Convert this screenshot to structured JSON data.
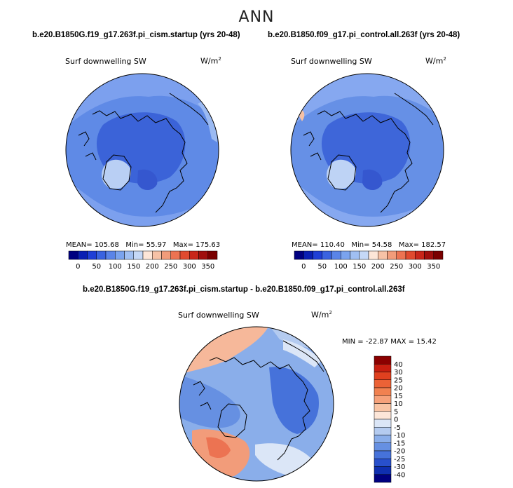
{
  "season": "ANN",
  "panels": [
    {
      "title": "b.e20.B1850G.f19_g17.263f.pi_cism.startup (yrs 20-48)",
      "label": "Surf downwelling SW",
      "units_base": "W/m",
      "units_exp": "2",
      "mean_label": "MEAN=",
      "mean": "105.68",
      "min_label": "Min=",
      "min": "55.97",
      "max_label": "Max=",
      "max": "175.63"
    },
    {
      "title": "b.e20.B1850.f09_g17.pi_control.all.263f (yrs 20-48)",
      "label": "Surf downwelling SW",
      "units_base": "W/m",
      "units_exp": "2",
      "mean_label": "MEAN=",
      "mean": "110.40",
      "min_label": "Min=",
      "min": "54.58",
      "max_label": "Max=",
      "max": "182.57"
    }
  ],
  "diff": {
    "title": "b.e20.B1850G.f19_g17.263f.pi_cism.startup - b.e20.B1850.f09_g17.pi_control.all.263f",
    "label": "Surf downwelling SW",
    "units_base": "W/m",
    "units_exp": "2",
    "stats_text": "MIN = -22.87 MAX =  15.42"
  },
  "chart_data": [
    {
      "type": "heatmap",
      "projection": "north-polar-stereographic",
      "title": "b.e20.B1850G.f19_g17.263f.pi_cism.startup (yrs 20-48)",
      "variable": "Surf downwelling SW",
      "units": "W/m2",
      "mean": 105.68,
      "min": 55.97,
      "max": 175.63,
      "colorbar_levels": [
        0,
        50,
        100,
        150,
        200,
        250,
        300,
        350
      ],
      "colorbar_colors": [
        "#000080",
        "#0a1fb3",
        "#1f3fd6",
        "#3a63e0",
        "#5a84e8",
        "#7aa3ee",
        "#a0bff2",
        "#c5d8f6",
        "#fde6d8",
        "#f7c2a6",
        "#f29c7a",
        "#ec7352",
        "#e04a2f",
        "#c8261a",
        "#a00f0d",
        "#7a0000"
      ]
    },
    {
      "type": "heatmap",
      "projection": "north-polar-stereographic",
      "title": "b.e20.B1850.f09_g17.pi_control.all.263f (yrs 20-48)",
      "variable": "Surf downwelling SW",
      "units": "W/m2",
      "mean": 110.4,
      "min": 54.58,
      "max": 182.57,
      "colorbar_levels": [
        0,
        50,
        100,
        150,
        200,
        250,
        300,
        350
      ],
      "colorbar_colors": [
        "#000080",
        "#0a1fb3",
        "#1f3fd6",
        "#3a63e0",
        "#5a84e8",
        "#7aa3ee",
        "#a0bff2",
        "#c5d8f6",
        "#fde6d8",
        "#f7c2a6",
        "#f29c7a",
        "#ec7352",
        "#e04a2f",
        "#c8261a",
        "#a00f0d",
        "#7a0000"
      ]
    },
    {
      "type": "heatmap",
      "projection": "north-polar-stereographic",
      "title": "b.e20.B1850G.f19_g17.263f.pi_cism.startup - b.e20.B1850.f09_g17.pi_control.all.263f",
      "variable": "Surf downwelling SW",
      "units": "W/m2",
      "min": -22.87,
      "max": 15.42,
      "colorbar_levels": [
        40,
        30,
        25,
        20,
        15,
        10,
        5,
        0,
        -5,
        -10,
        -15,
        -20,
        -25,
        -30,
        -40
      ],
      "colorbar_colors": [
        "#8b0000",
        "#c81e10",
        "#e0401f",
        "#ec6236",
        "#f18150",
        "#f6a17a",
        "#f9c4a4",
        "#fde6d8",
        "#dbe6f7",
        "#b4cbf0",
        "#8aaeea",
        "#6690e2",
        "#4672da",
        "#2850cc",
        "#0f2fb0",
        "#000080"
      ]
    }
  ]
}
